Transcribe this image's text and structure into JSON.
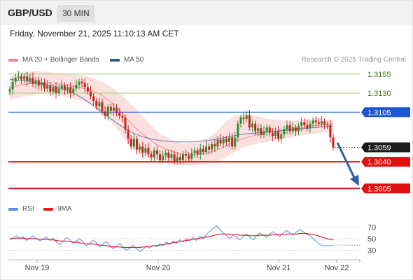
{
  "header": {
    "symbol": "GBP/USD",
    "timeframe": "30 MIN"
  },
  "timestamp": "Friday, November 21, 2025 11:10:13 AM CET",
  "legend": {
    "bb": {
      "label": "MA 20 + Bollinger Bands",
      "color": "#f28c8c"
    },
    "ma50": {
      "label": "MA 50",
      "color": "#2d5b9a"
    },
    "rsi": {
      "label": "RSI",
      "color": "#5b8def"
    },
    "ma9": {
      "label": "9MA",
      "color": "#e02020"
    }
  },
  "credit": "Research © 2025 Trading Central",
  "colors": {
    "up": "#2e8b2e",
    "down": "#cc1f1f",
    "resistance_green": "#9ccf6a",
    "pivot_blue": "#1a56d6",
    "support_red": "#e01010",
    "arrow": "#2e5ea8"
  },
  "chart_data": {
    "type": "candlestick",
    "price_axis": {
      "min": 1.2975,
      "max": 1.3175
    },
    "x_ticks": [
      "Nov 19",
      "Nov 20",
      "Nov 21",
      "Nov 22"
    ],
    "levels": [
      {
        "value": 1.3155,
        "label": "1.3155",
        "style": "resistance"
      },
      {
        "value": 1.313,
        "label": "1.3130",
        "style": "resistance"
      },
      {
        "value": 1.3105,
        "label": "1.3105",
        "style": "pivot"
      },
      {
        "value": 1.3059,
        "label": "1.3059",
        "style": "last"
      },
      {
        "value": 1.304,
        "label": "1.3040",
        "style": "support"
      },
      {
        "value": 1.3005,
        "label": "1.3005",
        "style": "support"
      }
    ],
    "last_price": 1.3059,
    "projection": {
      "from": 1.3065,
      "to": 1.3012
    },
    "closes": [
      1.3135,
      1.3145,
      1.315,
      1.3152,
      1.3148,
      1.3152,
      1.3146,
      1.315,
      1.3142,
      1.3147,
      1.314,
      1.3144,
      1.3136,
      1.314,
      1.3132,
      1.3138,
      1.313,
      1.3136,
      1.314,
      1.3134,
      1.3138,
      1.313,
      1.3136,
      1.3141,
      1.3145,
      1.3143,
      1.3138,
      1.3132,
      1.3126,
      1.312,
      1.3113,
      1.3118,
      1.3106,
      1.31,
      1.3112,
      1.3107,
      1.3111,
      1.3104,
      1.31,
      1.3098,
      1.3082,
      1.307,
      1.306,
      1.307,
      1.3056,
      1.306,
      1.3052,
      1.3058,
      1.305,
      1.3046,
      1.3055,
      1.305,
      1.3042,
      1.3048,
      1.3052,
      1.3045,
      1.305,
      1.304,
      1.3046,
      1.3042,
      1.305,
      1.3048,
      1.3044,
      1.3051,
      1.3055,
      1.305,
      1.3057,
      1.3053,
      1.306,
      1.3056,
      1.3063,
      1.306,
      1.3069,
      1.3064,
      1.307,
      1.3066,
      1.3072,
      1.306,
      1.3072,
      1.309,
      1.3098,
      1.3096,
      1.3101,
      1.3085,
      1.309,
      1.308,
      1.3084,
      1.3075,
      1.308,
      1.3085,
      1.3078,
      1.3074,
      1.308,
      1.307,
      1.3076,
      1.3083,
      1.3088,
      1.308,
      1.3085,
      1.308,
      1.3087,
      1.3092,
      1.3088,
      1.3084,
      1.309,
      1.3094,
      1.3092,
      1.309,
      1.3093,
      1.3089,
      1.3088,
      1.3072,
      1.3059
    ],
    "bollinger_bands": {
      "mid": [
        1.3136,
        1.314,
        1.3142,
        1.3143,
        1.3144,
        1.3144,
        1.3142,
        1.314,
        1.3138,
        1.3136,
        1.3133,
        1.3128,
        1.312,
        1.311,
        1.3098,
        1.3086,
        1.3076,
        1.3068,
        1.3061,
        1.3056,
        1.3052,
        1.305,
        1.3049,
        1.305,
        1.3052,
        1.3056,
        1.306,
        1.3066,
        1.307,
        1.3073,
        1.3076,
        1.3079,
        1.308,
        1.3082,
        1.3083,
        1.3084,
        1.3086,
        1.3088,
        1.3089,
        1.309
      ],
      "upper": [
        1.3152,
        1.3156,
        1.3158,
        1.3159,
        1.3158,
        1.3157,
        1.3156,
        1.3155,
        1.3154,
        1.3153,
        1.315,
        1.3145,
        1.314,
        1.3132,
        1.3122,
        1.3112,
        1.31,
        1.3088,
        1.3078,
        1.3072,
        1.3066,
        1.3064,
        1.3065,
        1.3068,
        1.3072,
        1.308,
        1.3092,
        1.31,
        1.3102,
        1.3101,
        1.3099,
        1.3097,
        1.3095,
        1.3094,
        1.3094,
        1.3095,
        1.3096,
        1.3097,
        1.3096,
        1.3095
      ],
      "lower": [
        1.312,
        1.3124,
        1.3126,
        1.3127,
        1.313,
        1.3131,
        1.3128,
        1.3125,
        1.3122,
        1.3119,
        1.3114,
        1.3106,
        1.3095,
        1.3082,
        1.3068,
        1.3056,
        1.3048,
        1.3044,
        1.3041,
        1.3038,
        1.3036,
        1.3035,
        1.3035,
        1.3036,
        1.3038,
        1.304,
        1.3045,
        1.3052,
        1.3058,
        1.3062,
        1.3064,
        1.3066,
        1.3068,
        1.307,
        1.3072,
        1.3074,
        1.3076,
        1.3077,
        1.3078,
        1.3079
      ]
    },
    "ma50": [
      1.3148,
      1.3147,
      1.3146,
      1.3144,
      1.3142,
      1.314,
      1.3137,
      1.3133,
      1.3128,
      1.3122,
      1.3114,
      1.3106,
      1.3098,
      1.309,
      1.3083,
      1.3077,
      1.3073,
      1.307,
      1.3068,
      1.3067,
      1.3066,
      1.3066,
      1.3066,
      1.3067,
      1.3068,
      1.307,
      1.3072,
      1.3074,
      1.3076,
      1.3077,
      1.3078,
      1.3079,
      1.308,
      1.3081,
      1.3082,
      1.3083,
      1.3084,
      1.3085,
      1.3086,
      1.3087
    ],
    "rsi": {
      "axis": {
        "min": 20,
        "max": 80,
        "ticks": [
          70,
          50,
          30
        ]
      },
      "rsi": [
        48,
        52,
        55,
        50,
        53,
        47,
        51,
        55,
        50,
        46,
        49,
        53,
        47,
        51,
        44,
        40,
        45,
        52,
        48,
        42,
        46,
        50,
        44,
        38,
        42,
        47,
        43,
        36,
        41,
        45,
        38,
        33,
        37,
        42,
        35,
        30,
        34,
        39,
        33,
        28,
        32,
        37,
        34,
        39,
        36,
        41,
        38,
        44,
        40,
        46,
        42,
        48,
        44,
        50,
        46,
        52,
        47,
        54,
        50,
        57,
        63,
        68,
        72,
        66,
        60,
        55,
        50,
        56,
        52,
        48,
        54,
        58,
        52,
        48,
        55,
        60,
        56,
        52,
        58,
        62,
        57,
        54,
        60,
        64,
        60,
        56,
        62,
        66,
        62,
        58,
        55,
        50,
        45,
        40,
        38,
        38,
        38,
        39
      ],
      "ma9": [
        50,
        50,
        51,
        51,
        51,
        50,
        50,
        50,
        50,
        49,
        49,
        49,
        48,
        48,
        47,
        46,
        46,
        46,
        45,
        44,
        44,
        43,
        42,
        41,
        41,
        41,
        40,
        39,
        39,
        38,
        37,
        36,
        36,
        36,
        35,
        35,
        35,
        35,
        35,
        35,
        36,
        36,
        37,
        38,
        38,
        39,
        40,
        41,
        42,
        43,
        44,
        45,
        46,
        47,
        48,
        49,
        50,
        51,
        52,
        53,
        54,
        55,
        57,
        58,
        58,
        58,
        58,
        57,
        57,
        56,
        56,
        56,
        55,
        55,
        55,
        56,
        56,
        56,
        56,
        57,
        57,
        57,
        57,
        58,
        58,
        58,
        58,
        59,
        59,
        59,
        58,
        57,
        56,
        54,
        52,
        50,
        49,
        48
      ]
    }
  }
}
